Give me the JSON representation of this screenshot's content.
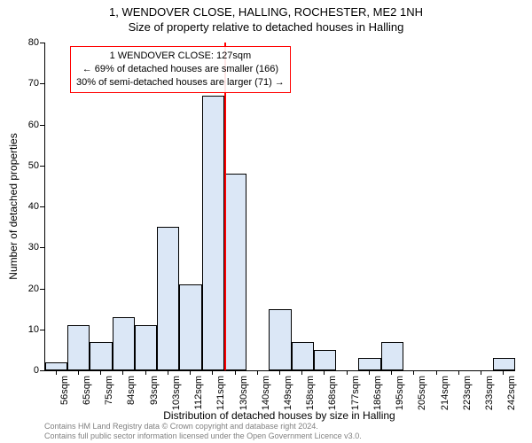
{
  "title": "1, WENDOVER CLOSE, HALLING, ROCHESTER, ME2 1NH",
  "subtitle": "Size of property relative to detached houses in Halling",
  "y_axis": {
    "label": "Number of detached properties",
    "min": 0,
    "max": 80,
    "ticks": [
      0,
      10,
      20,
      30,
      40,
      50,
      60,
      70,
      80
    ]
  },
  "x_axis": {
    "label": "Distribution of detached houses by size in Halling",
    "categories": [
      "56sqm",
      "65sqm",
      "75sqm",
      "84sqm",
      "93sqm",
      "103sqm",
      "112sqm",
      "121sqm",
      "130sqm",
      "140sqm",
      "149sqm",
      "158sqm",
      "168sqm",
      "177sqm",
      "186sqm",
      "195sqm",
      "205sqm",
      "214sqm",
      "223sqm",
      "233sqm",
      "242sqm"
    ]
  },
  "bars": {
    "values": [
      2,
      11,
      7,
      13,
      11,
      35,
      21,
      67,
      48,
      0,
      15,
      7,
      5,
      0,
      3,
      7,
      0,
      0,
      0,
      0,
      3
    ],
    "fill_color": "#dbe7f6",
    "border_color": "#000000",
    "bar_width_fraction": 1.0
  },
  "marker": {
    "position_index": 8,
    "color": "#ff0000"
  },
  "annotation": {
    "lines": [
      "1 WENDOVER CLOSE: 127sqm",
      "← 69% of detached houses are smaller (166)",
      "30% of semi-detached houses are larger (71) →"
    ],
    "border_color": "#ff0000"
  },
  "footer": {
    "line1": "Contains HM Land Registry data © Crown copyright and database right 2024.",
    "line2": "Contains full public sector information licensed under the Open Government Licence v3.0."
  },
  "plot": {
    "background": "#ffffff"
  }
}
